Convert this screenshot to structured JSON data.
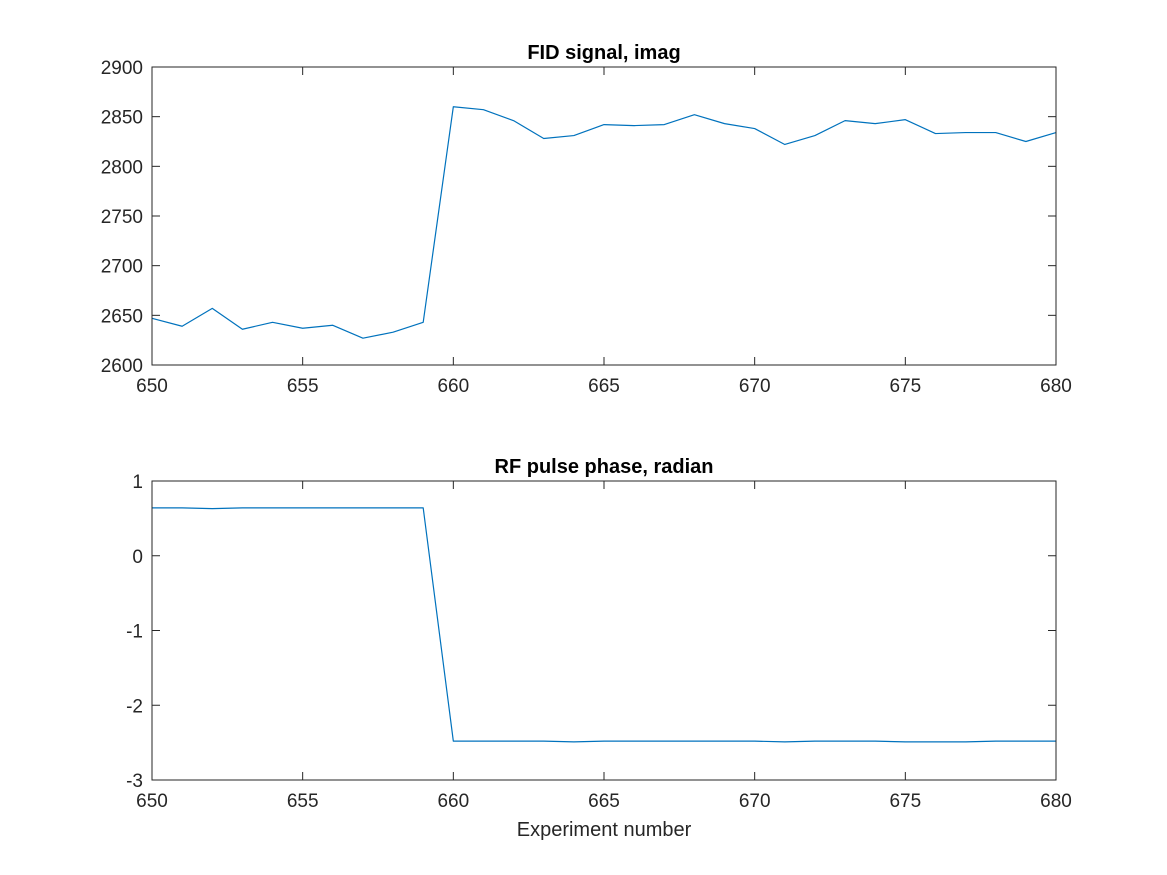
{
  "chart_data": [
    {
      "type": "line",
      "title": "FID signal, imag",
      "xlabel": "",
      "ylabel": "",
      "xlim": [
        650,
        680
      ],
      "ylim": [
        2600,
        2900
      ],
      "xticks": [
        650,
        655,
        660,
        665,
        670,
        675,
        680
      ],
      "yticks": [
        2600,
        2650,
        2700,
        2750,
        2800,
        2850,
        2900
      ],
      "grid": false,
      "color": "#0072BD",
      "series": [
        {
          "x": [
            650,
            651,
            652,
            653,
            654,
            655,
            656,
            657,
            658,
            659,
            660,
            661,
            662,
            663,
            664,
            665,
            666,
            667,
            668,
            669,
            670,
            671,
            672,
            673,
            674,
            675,
            676,
            677,
            678,
            679,
            680
          ],
          "values": [
            2647,
            2639,
            2657,
            2636,
            2643,
            2637,
            2640,
            2627,
            2633,
            2643,
            2860,
            2857,
            2846,
            2828,
            2831,
            2842,
            2841,
            2842,
            2852,
            2843,
            2838,
            2822,
            2831,
            2846,
            2843,
            2847,
            2833,
            2834,
            2834,
            2825,
            2834
          ]
        }
      ]
    },
    {
      "type": "line",
      "title": "RF pulse phase, radian",
      "xlabel": "Experiment number",
      "ylabel": "",
      "xlim": [
        650,
        680
      ],
      "ylim": [
        -3,
        1
      ],
      "xticks": [
        650,
        655,
        660,
        665,
        670,
        675,
        680
      ],
      "yticks": [
        -3,
        -2,
        -1,
        0,
        1
      ],
      "grid": false,
      "color": "#0072BD",
      "series": [
        {
          "x": [
            650,
            651,
            652,
            653,
            654,
            655,
            656,
            657,
            658,
            659,
            660,
            661,
            662,
            663,
            664,
            665,
            666,
            667,
            668,
            669,
            670,
            671,
            672,
            673,
            674,
            675,
            676,
            677,
            678,
            679,
            680
          ],
          "values": [
            0.64,
            0.64,
            0.63,
            0.64,
            0.64,
            0.64,
            0.64,
            0.64,
            0.64,
            0.64,
            -2.48,
            -2.48,
            -2.48,
            -2.48,
            -2.49,
            -2.48,
            -2.48,
            -2.48,
            -2.48,
            -2.48,
            -2.48,
            -2.49,
            -2.48,
            -2.48,
            -2.48,
            -2.49,
            -2.49,
            -2.49,
            -2.48,
            -2.48,
            -2.48
          ]
        }
      ]
    }
  ]
}
